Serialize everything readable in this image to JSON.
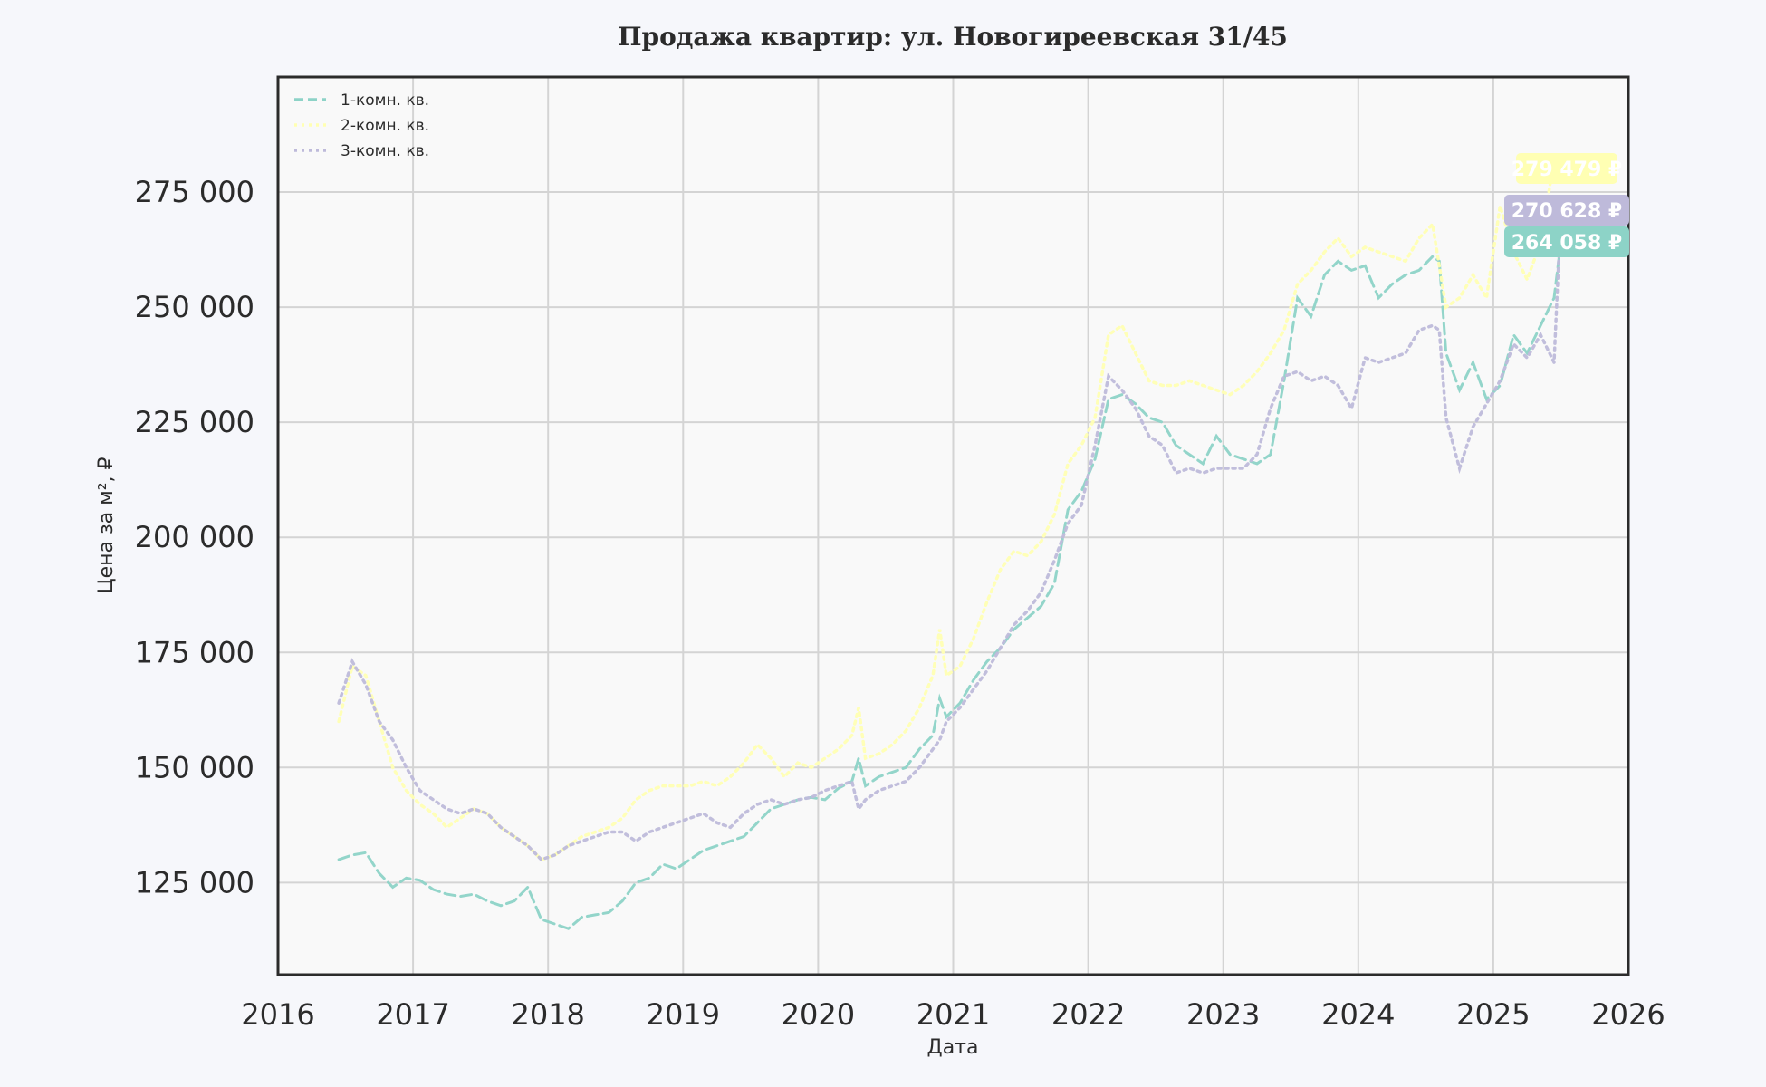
{
  "chart_data": {
    "type": "line",
    "title": "Продажа квартир: ул. Новогиреевская 31/45",
    "xlabel": "Дата",
    "ylabel": "Цена за м², ₽",
    "xlim": [
      2016,
      2026
    ],
    "ylim": [
      105000,
      300000
    ],
    "xticks": [
      2016,
      2017,
      2018,
      2019,
      2020,
      2021,
      2022,
      2023,
      2024,
      2025,
      2026
    ],
    "xtick_labels": [
      "2016",
      "2017",
      "2018",
      "2019",
      "2020",
      "2021",
      "2022",
      "2023",
      "2024",
      "2025",
      "2026"
    ],
    "yticks": [
      125000,
      150000,
      175000,
      200000,
      225000,
      250000,
      275000
    ],
    "ytick_labels": [
      "125 000",
      "150 000",
      "175 000",
      "200 000",
      "225 000",
      "250 000",
      "275 000"
    ],
    "grid": true,
    "legend_position": "top-left",
    "series": [
      {
        "name": "1-комн. кв.",
        "color": "#8dd3c7",
        "style": "dashed",
        "end_label": "264 058 ₽",
        "x": [
          2016.45,
          2016.55,
          2016.65,
          2016.75,
          2016.85,
          2016.95,
          2017.05,
          2017.15,
          2017.25,
          2017.35,
          2017.45,
          2017.55,
          2017.65,
          2017.75,
          2017.85,
          2017.95,
          2018.05,
          2018.15,
          2018.25,
          2018.35,
          2018.45,
          2018.55,
          2018.65,
          2018.75,
          2018.85,
          2018.95,
          2019.05,
          2019.15,
          2019.25,
          2019.35,
          2019.45,
          2019.55,
          2019.65,
          2019.75,
          2019.85,
          2019.95,
          2020.05,
          2020.15,
          2020.25,
          2020.3,
          2020.35,
          2020.45,
          2020.55,
          2020.65,
          2020.75,
          2020.85,
          2020.9,
          2020.95,
          2021.05,
          2021.15,
          2021.25,
          2021.35,
          2021.45,
          2021.55,
          2021.65,
          2021.75,
          2021.85,
          2021.95,
          2022.05,
          2022.15,
          2022.25,
          2022.35,
          2022.45,
          2022.55,
          2022.65,
          2022.75,
          2022.85,
          2022.95,
          2023.05,
          2023.15,
          2023.25,
          2023.35,
          2023.45,
          2023.55,
          2023.65,
          2023.75,
          2023.85,
          2023.95,
          2024.05,
          2024.15,
          2024.25,
          2024.35,
          2024.45,
          2024.55,
          2024.6,
          2024.65,
          2024.75,
          2024.85,
          2024.95,
          2025.05,
          2025.15,
          2025.25,
          2025.35,
          2025.45,
          2025.5
        ],
        "y": [
          130000,
          131000,
          131500,
          127000,
          124000,
          126000,
          125500,
          123500,
          122500,
          122000,
          122500,
          121000,
          120000,
          121000,
          124000,
          117000,
          116000,
          115000,
          117500,
          118000,
          118500,
          121000,
          125000,
          126000,
          129000,
          128000,
          130000,
          132000,
          133000,
          134000,
          135000,
          138000,
          141000,
          142000,
          143000,
          143500,
          143000,
          145500,
          147000,
          152000,
          146000,
          148000,
          149000,
          150000,
          154000,
          157000,
          165000,
          161000,
          164000,
          169000,
          173000,
          176000,
          180000,
          182500,
          185000,
          190000,
          206000,
          210000,
          217000,
          230000,
          231000,
          229000,
          226000,
          225000,
          220000,
          218000,
          216000,
          222000,
          218000,
          217000,
          216000,
          218000,
          234000,
          252000,
          248000,
          257000,
          260000,
          258000,
          259000,
          252000,
          255000,
          257000,
          258000,
          261000,
          260000,
          240000,
          232000,
          238000,
          230000,
          233000,
          244000,
          240000,
          246000,
          252000,
          264058
        ]
      },
      {
        "name": "2-комн. кв.",
        "color": "#ffffb3",
        "style": "dotted",
        "end_label": "279 479 ₽",
        "x": [
          2016.45,
          2016.55,
          2016.65,
          2016.75,
          2016.85,
          2016.95,
          2017.05,
          2017.15,
          2017.25,
          2017.35,
          2017.45,
          2017.55,
          2017.65,
          2017.75,
          2017.85,
          2017.95,
          2018.05,
          2018.15,
          2018.25,
          2018.35,
          2018.45,
          2018.55,
          2018.65,
          2018.75,
          2018.85,
          2018.95,
          2019.05,
          2019.15,
          2019.25,
          2019.35,
          2019.45,
          2019.55,
          2019.65,
          2019.75,
          2019.85,
          2019.95,
          2020.05,
          2020.15,
          2020.25,
          2020.3,
          2020.35,
          2020.45,
          2020.55,
          2020.65,
          2020.75,
          2020.85,
          2020.9,
          2020.95,
          2021.05,
          2021.15,
          2021.25,
          2021.35,
          2021.45,
          2021.55,
          2021.65,
          2021.75,
          2021.85,
          2021.95,
          2022.05,
          2022.15,
          2022.25,
          2022.35,
          2022.45,
          2022.55,
          2022.65,
          2022.75,
          2022.85,
          2022.95,
          2023.05,
          2023.15,
          2023.25,
          2023.35,
          2023.45,
          2023.55,
          2023.65,
          2023.75,
          2023.85,
          2023.95,
          2024.05,
          2024.15,
          2024.25,
          2024.35,
          2024.45,
          2024.55,
          2024.65,
          2024.75,
          2024.85,
          2024.95,
          2025.05,
          2025.15,
          2025.25,
          2025.35,
          2025.45,
          2025.5
        ],
        "y": [
          160000,
          172000,
          170000,
          160000,
          150000,
          145000,
          142000,
          140000,
          137000,
          139000,
          141000,
          140000,
          137000,
          135000,
          133000,
          130000,
          131000,
          133000,
          135000,
          136000,
          137000,
          139000,
          143000,
          145000,
          146000,
          146000,
          146000,
          147000,
          146000,
          148000,
          151000,
          155000,
          152000,
          148000,
          151000,
          150000,
          152000,
          154000,
          157000,
          163000,
          152000,
          153000,
          155000,
          158000,
          163000,
          170000,
          180000,
          170000,
          172000,
          178000,
          186000,
          193000,
          197000,
          196000,
          199000,
          205000,
          216000,
          220000,
          226000,
          244000,
          246000,
          240000,
          234000,
          233000,
          233000,
          234000,
          233000,
          232000,
          231000,
          233000,
          236000,
          240000,
          245000,
          255000,
          258000,
          262000,
          265000,
          261000,
          263000,
          262000,
          261000,
          260000,
          265000,
          268000,
          250000,
          252000,
          257000,
          252000,
          272000,
          262000,
          256000,
          264000,
          282000,
          279479
        ]
      },
      {
        "name": "3-комн. кв.",
        "color": "#bebada",
        "style": "dotted",
        "end_label": "270 628 ₽",
        "x": [
          2016.45,
          2016.55,
          2016.65,
          2016.75,
          2016.85,
          2016.95,
          2017.05,
          2017.15,
          2017.25,
          2017.35,
          2017.45,
          2017.55,
          2017.65,
          2017.75,
          2017.85,
          2017.95,
          2018.05,
          2018.15,
          2018.25,
          2018.35,
          2018.45,
          2018.55,
          2018.65,
          2018.75,
          2018.85,
          2018.95,
          2019.05,
          2019.15,
          2019.25,
          2019.35,
          2019.45,
          2019.55,
          2019.65,
          2019.75,
          2019.85,
          2019.95,
          2020.05,
          2020.15,
          2020.25,
          2020.3,
          2020.35,
          2020.45,
          2020.55,
          2020.65,
          2020.75,
          2020.85,
          2020.9,
          2020.95,
          2021.05,
          2021.15,
          2021.25,
          2021.35,
          2021.45,
          2021.55,
          2021.65,
          2021.75,
          2021.85,
          2021.95,
          2022.05,
          2022.15,
          2022.25,
          2022.35,
          2022.45,
          2022.55,
          2022.65,
          2022.75,
          2022.85,
          2022.95,
          2023.05,
          2023.15,
          2023.25,
          2023.35,
          2023.45,
          2023.55,
          2023.65,
          2023.75,
          2023.85,
          2023.95,
          2024.05,
          2024.15,
          2024.25,
          2024.35,
          2024.45,
          2024.55,
          2024.6,
          2024.65,
          2024.75,
          2024.85,
          2024.95,
          2025.05,
          2025.15,
          2025.25,
          2025.35,
          2025.45,
          2025.5
        ],
        "y": [
          164000,
          173000,
          168000,
          160000,
          156000,
          150000,
          145000,
          143000,
          141000,
          140000,
          141000,
          140000,
          137000,
          135000,
          133000,
          130000,
          131000,
          133000,
          134000,
          135000,
          136000,
          136000,
          134000,
          136000,
          137000,
          138000,
          139000,
          140000,
          138000,
          137000,
          140000,
          142000,
          143000,
          142000,
          143000,
          143500,
          145000,
          146000,
          147000,
          141000,
          143000,
          145000,
          146000,
          147000,
          150000,
          154000,
          156000,
          160000,
          163000,
          167000,
          171000,
          176000,
          181000,
          184000,
          188000,
          195000,
          203000,
          207000,
          220000,
          235000,
          232000,
          228000,
          222000,
          220000,
          214000,
          215000,
          214000,
          215000,
          215000,
          215000,
          218000,
          228000,
          235000,
          236000,
          234000,
          235000,
          233000,
          228000,
          239000,
          238000,
          239000,
          240000,
          245000,
          246000,
          245000,
          226000,
          215000,
          224000,
          229000,
          234000,
          242000,
          239000,
          244000,
          238000,
          270628
        ]
      }
    ]
  }
}
